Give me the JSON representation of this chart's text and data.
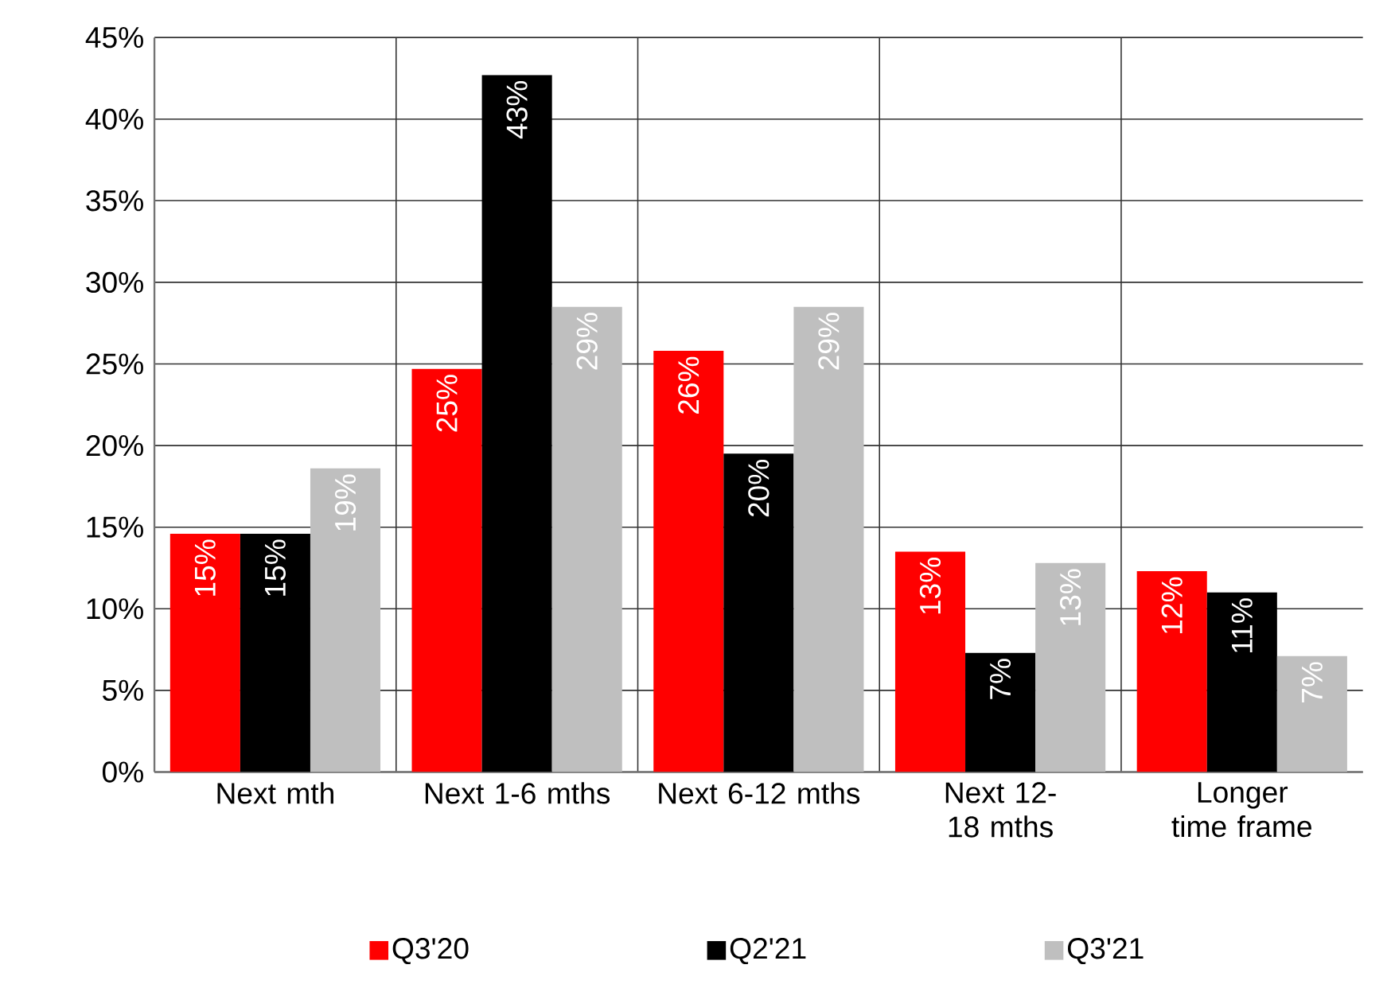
{
  "chart_data": {
    "type": "bar",
    "categories": [
      "Next mth",
      "Next 1-6 mths",
      "Next 6-12 mths",
      "Next 12-18 mths",
      "Longer time frame"
    ],
    "series": [
      {
        "name": "Q3'20",
        "color": "#ff0000",
        "values": [
          14.6,
          24.7,
          25.8,
          13.5,
          12.3
        ],
        "value_labels": [
          "15%",
          "25%",
          "26%",
          "13%",
          "12%"
        ]
      },
      {
        "name": "Q2'21",
        "color": "#000000",
        "values": [
          14.6,
          42.7,
          19.5,
          7.3,
          11.0
        ],
        "value_labels": [
          "15%",
          "43%",
          "20%",
          "7%",
          "11%"
        ]
      },
      {
        "name": "Q3'21",
        "color": "#bfbfbf",
        "values": [
          18.6,
          28.5,
          28.5,
          12.8,
          7.1
        ],
        "value_labels": [
          "19%",
          "29%",
          "29%",
          "13%",
          "7%"
        ]
      }
    ],
    "ylim": [
      0,
      45
    ],
    "yticks": [
      {
        "value": 0,
        "label": "0%"
      },
      {
        "value": 5,
        "label": "5%"
      },
      {
        "value": 10,
        "label": "10%"
      },
      {
        "value": 15,
        "label": "15%"
      },
      {
        "value": 20,
        "label": "20%"
      },
      {
        "value": 25,
        "label": "25%"
      },
      {
        "value": 30,
        "label": "30%"
      },
      {
        "value": 35,
        "label": "35%"
      },
      {
        "value": 40,
        "label": "40%"
      },
      {
        "value": 45,
        "label": "45%"
      }
    ],
    "grid": true,
    "legend": "bottom"
  }
}
